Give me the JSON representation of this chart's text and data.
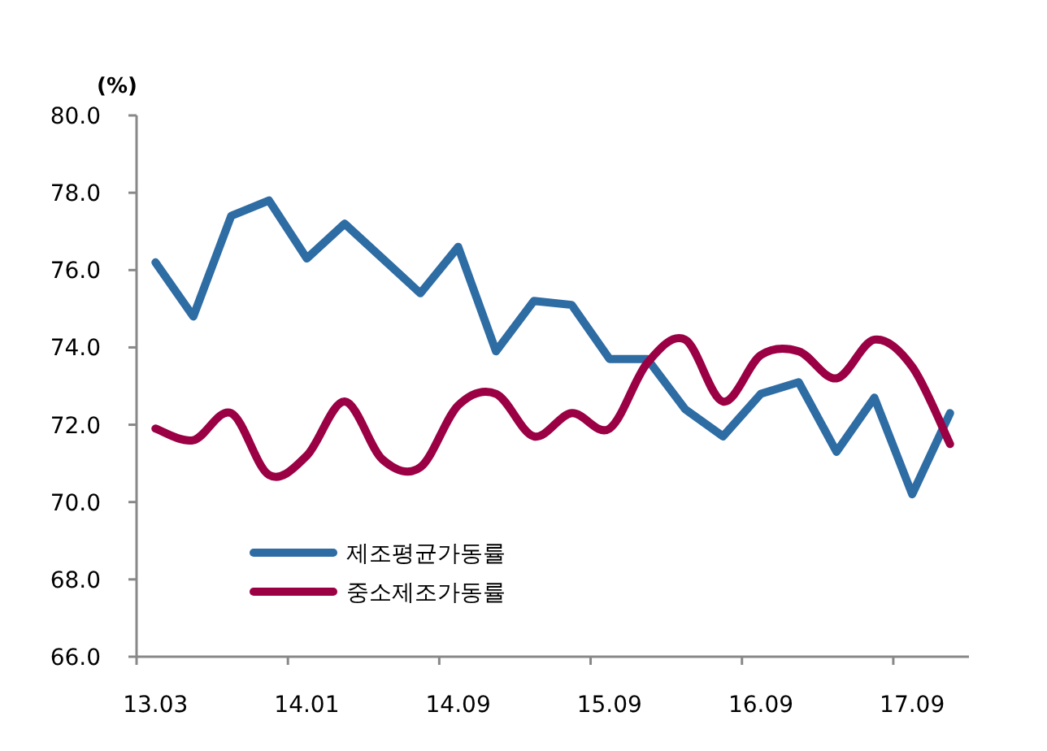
{
  "chart_data": {
    "type": "line",
    "ylabel": "(%)",
    "categories": [
      "13.03",
      null,
      null,
      null,
      "14.01",
      null,
      null,
      null,
      "14.09",
      null,
      null,
      null,
      "15.09",
      null,
      null,
      null,
      "16.09",
      null,
      null,
      null,
      "17.09",
      null
    ],
    "series": [
      {
        "name": "제조평균가동률",
        "color": "#2e6ca4",
        "values": [
          76.2,
          74.8,
          77.4,
          77.8,
          76.3,
          77.2,
          76.3,
          75.4,
          76.6,
          73.9,
          75.2,
          75.1,
          73.7,
          73.7,
          72.4,
          71.7,
          72.8,
          73.1,
          71.3,
          72.7,
          70.2,
          72.3
        ]
      },
      {
        "name": "중소제조가동률",
        "color": "#9b0045",
        "values": [
          71.9,
          71.6,
          72.3,
          70.7,
          71.2,
          72.6,
          71.1,
          70.9,
          72.5,
          72.8,
          71.7,
          72.3,
          71.9,
          73.6,
          74.2,
          72.6,
          73.8,
          73.9,
          73.2,
          74.2,
          73.5,
          71.5
        ]
      }
    ],
    "ylim": [
      66,
      80
    ],
    "yticks": [
      {
        "value": 66,
        "label": "66.0"
      },
      {
        "value": 68,
        "label": "68.0"
      },
      {
        "value": 70,
        "label": "70.0"
      },
      {
        "value": 72,
        "label": "72.0"
      },
      {
        "value": 74,
        "label": "74.0"
      },
      {
        "value": 76,
        "label": "76.0"
      },
      {
        "value": 78,
        "label": "78.0"
      },
      {
        "value": 80,
        "label": "80.0"
      }
    ],
    "grid": false,
    "legend": "bottom left",
    "marker": "none",
    "line_style": "solid"
  }
}
